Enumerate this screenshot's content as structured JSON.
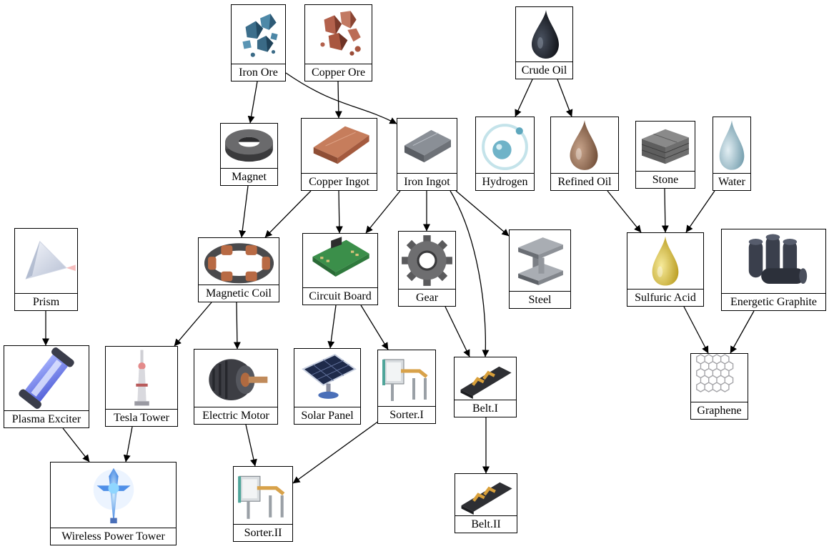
{
  "nodes": [
    {
      "id": "iron_ore",
      "label": "Iron Ore",
      "icon": "iron-ore-icon"
    },
    {
      "id": "copper_ore",
      "label": "Copper Ore",
      "icon": "copper-ore-icon"
    },
    {
      "id": "crude_oil",
      "label": "Crude Oil",
      "icon": "crude-oil-icon"
    },
    {
      "id": "magnet",
      "label": "Magnet",
      "icon": "magnet-icon"
    },
    {
      "id": "copper_ingot",
      "label": "Copper Ingot",
      "icon": "copper-ingot-icon"
    },
    {
      "id": "iron_ingot",
      "label": "Iron Ingot",
      "icon": "iron-ingot-icon"
    },
    {
      "id": "hydrogen",
      "label": "Hydrogen",
      "icon": "hydrogen-icon"
    },
    {
      "id": "refined_oil",
      "label": "Refined Oil",
      "icon": "refined-oil-icon"
    },
    {
      "id": "stone",
      "label": "Stone",
      "icon": "stone-icon"
    },
    {
      "id": "water",
      "label": "Water",
      "icon": "water-icon"
    },
    {
      "id": "prism",
      "label": "Prism",
      "icon": "prism-icon"
    },
    {
      "id": "magnetic_coil",
      "label": "Magnetic Coil",
      "icon": "magnetic-coil-icon"
    },
    {
      "id": "circuit_board",
      "label": "Circuit Board",
      "icon": "circuit-board-icon"
    },
    {
      "id": "gear",
      "label": "Gear",
      "icon": "gear-icon"
    },
    {
      "id": "steel",
      "label": "Steel",
      "icon": "steel-icon"
    },
    {
      "id": "sulfuric_acid",
      "label": "Sulfuric Acid",
      "icon": "sulfuric-acid-icon"
    },
    {
      "id": "energetic_graphite",
      "label": "Energetic Graphite",
      "icon": "energetic-graphite-icon"
    },
    {
      "id": "plasma_exciter",
      "label": "Plasma Exciter",
      "icon": "plasma-exciter-icon"
    },
    {
      "id": "tesla_tower",
      "label": "Tesla Tower",
      "icon": "tesla-tower-icon"
    },
    {
      "id": "electric_motor",
      "label": "Electric Motor",
      "icon": "electric-motor-icon"
    },
    {
      "id": "solar_panel",
      "label": "Solar Panel",
      "icon": "solar-panel-icon"
    },
    {
      "id": "sorter_1",
      "label": "Sorter.I",
      "icon": "sorter-icon"
    },
    {
      "id": "belt_1",
      "label": "Belt.I",
      "icon": "belt-icon"
    },
    {
      "id": "graphene",
      "label": "Graphene",
      "icon": "graphene-icon"
    },
    {
      "id": "wireless_power_tower",
      "label": "Wireless Power Tower",
      "icon": "wireless-power-tower-icon"
    },
    {
      "id": "sorter_2",
      "label": "Sorter.II",
      "icon": "sorter-icon"
    },
    {
      "id": "belt_2",
      "label": "Belt.II",
      "icon": "belt-icon"
    }
  ],
  "edges": [
    {
      "from": "iron_ore",
      "to": "magnet"
    },
    {
      "from": "iron_ore",
      "to": "iron_ingot"
    },
    {
      "from": "copper_ore",
      "to": "copper_ingot"
    },
    {
      "from": "crude_oil",
      "to": "hydrogen"
    },
    {
      "from": "crude_oil",
      "to": "refined_oil"
    },
    {
      "from": "magnet",
      "to": "magnetic_coil"
    },
    {
      "from": "copper_ingot",
      "to": "magnetic_coil"
    },
    {
      "from": "copper_ingot",
      "to": "circuit_board"
    },
    {
      "from": "iron_ingot",
      "to": "circuit_board"
    },
    {
      "from": "iron_ingot",
      "to": "gear"
    },
    {
      "from": "iron_ingot",
      "to": "steel"
    },
    {
      "from": "iron_ingot",
      "to": "belt_1"
    },
    {
      "from": "refined_oil",
      "to": "sulfuric_acid"
    },
    {
      "from": "stone",
      "to": "sulfuric_acid"
    },
    {
      "from": "water",
      "to": "sulfuric_acid"
    },
    {
      "from": "prism",
      "to": "plasma_exciter"
    },
    {
      "from": "magnetic_coil",
      "to": "tesla_tower"
    },
    {
      "from": "magnetic_coil",
      "to": "electric_motor"
    },
    {
      "from": "circuit_board",
      "to": "solar_panel"
    },
    {
      "from": "circuit_board",
      "to": "sorter_1"
    },
    {
      "from": "gear",
      "to": "belt_1"
    },
    {
      "from": "sulfuric_acid",
      "to": "graphene"
    },
    {
      "from": "energetic_graphite",
      "to": "graphene"
    },
    {
      "from": "plasma_exciter",
      "to": "wireless_power_tower"
    },
    {
      "from": "tesla_tower",
      "to": "wireless_power_tower"
    },
    {
      "from": "electric_motor",
      "to": "sorter_2"
    },
    {
      "from": "sorter_1",
      "to": "sorter_2"
    },
    {
      "from": "belt_1",
      "to": "belt_2"
    }
  ]
}
